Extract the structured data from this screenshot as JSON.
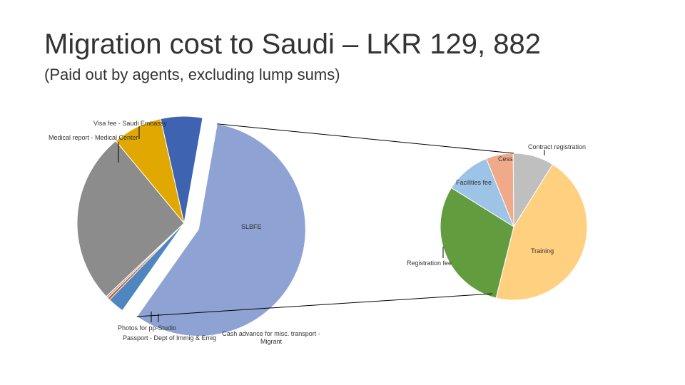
{
  "chart_data": [
    {
      "type": "pie",
      "title": "Migration cost to Saudi – LKR 129, 882",
      "subtitle": "(Paid out by agents, excluding lump sums)",
      "categories": [
        "SLBFE",
        "Cash advance for misc. transport - Migrant",
        "Passport - Dept of Immig & Emig",
        "Photos for pp-Studio",
        null,
        "Medical report - Medical Center",
        "Visa fee - Saudi Embassy"
      ],
      "values": [
        57,
        2.5,
        0.4,
        0.3,
        26,
        7.5,
        6.3
      ],
      "colors": [
        "#8fa2d4",
        "#4f86c0",
        "#c55a2a",
        "#a5a5a5",
        "#8c8c8c",
        "#e0a800",
        "#3e63b0"
      ]
    },
    {
      "type": "pie",
      "categories": [
        "Cess",
        "Contract registration",
        "Training",
        "Registration fee",
        "Facilities fee"
      ],
      "values": [
        6,
        9,
        45,
        30,
        10
      ],
      "colors": [
        "#f0aa8a",
        "#bfbfbf",
        "#ffd07f",
        "#629c3e",
        "#9dc3e6"
      ]
    }
  ]
}
